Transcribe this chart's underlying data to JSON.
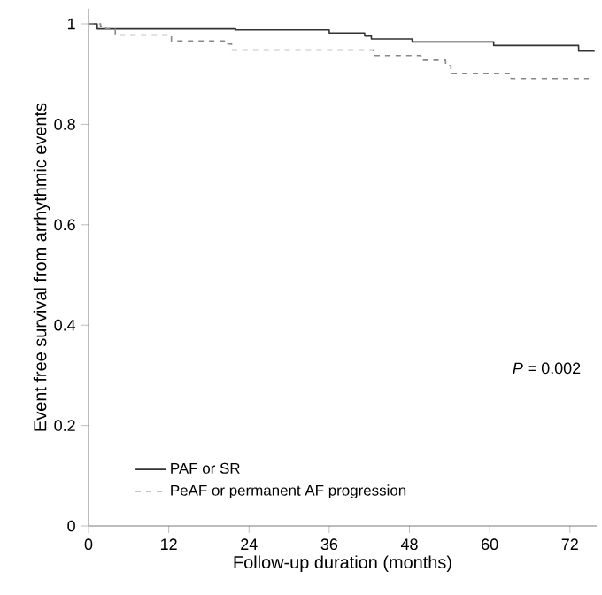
{
  "chart_data": {
    "type": "step",
    "xlabel": "Follow-up duration (months)",
    "ylabel": "Event free survival from arrhythmic events",
    "xlim": [
      0,
      76
    ],
    "ylim": [
      0,
      1.03
    ],
    "xticks": [
      0,
      12,
      24,
      36,
      48,
      60,
      72
    ],
    "yticks": [
      0,
      0.2,
      0.4,
      0.6,
      0.8,
      1
    ],
    "series": [
      {
        "name": "PAF or SR",
        "color": "#333333",
        "line_style": "solid",
        "x": [
          0,
          1.3,
          22,
          36,
          41.3,
          42.3,
          48.4,
          60.6,
          73.3,
          75.7
        ],
        "values": [
          1,
          0.99,
          0.988,
          0.982,
          0.976,
          0.97,
          0.964,
          0.957,
          0.946,
          0.946
        ]
      },
      {
        "name": "PeAF or permanent AF progression",
        "color": "#888888",
        "line_style": "dashed",
        "x": [
          0,
          1.8,
          2.6,
          4,
          12.4,
          20.6,
          21.4,
          42.6,
          49.7,
          53.4,
          54.2,
          63.2,
          74.8
        ],
        "values": [
          1,
          0.995,
          0.99,
          0.978,
          0.966,
          0.96,
          0.948,
          0.937,
          0.928,
          0.917,
          0.901,
          0.891,
          0.891
        ]
      }
    ],
    "legend": "bottom left",
    "grid": false,
    "annotations": [
      "*P* = 0.002"
    ]
  }
}
